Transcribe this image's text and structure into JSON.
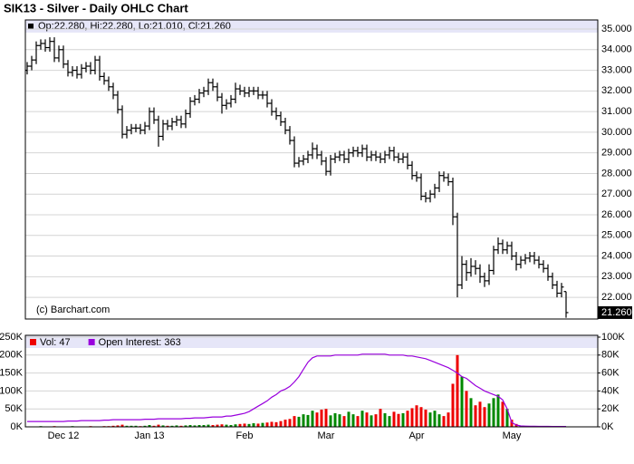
{
  "chart_data": [
    {
      "type": "ohlc",
      "title": "SIK13 - Silver - Daily OHLC Chart",
      "info": "Op:22.280, Hi:22.280, Lo:21.010, Cl:21.260",
      "copyright": "(c) Barchart.com",
      "color": "#000000",
      "last_price": {
        "value": 21.26,
        "label": "21.260"
      },
      "ylim": [
        20.95,
        35.44
      ],
      "yticks": [
        {
          "value": 22,
          "label": "22.000"
        },
        {
          "value": 23,
          "label": "23.000"
        },
        {
          "value": 24,
          "label": "24.000"
        },
        {
          "value": 25,
          "label": "25.000"
        },
        {
          "value": 26,
          "label": "26.000"
        },
        {
          "value": 27,
          "label": "27.000"
        },
        {
          "value": 28,
          "label": "28.000"
        },
        {
          "value": 29,
          "label": "29.000"
        },
        {
          "value": 30,
          "label": "30.000"
        },
        {
          "value": 31,
          "label": "31.000"
        },
        {
          "value": 32,
          "label": "32.000"
        },
        {
          "value": 33,
          "label": "33.000"
        },
        {
          "value": 34,
          "label": "34.000"
        },
        {
          "value": 35,
          "label": "35.000"
        }
      ],
      "grid": true,
      "open": [
        33.0,
        33.2,
        33.5,
        34.2,
        34.3,
        34.1,
        34.4,
        33.6,
        34.0,
        33.3,
        32.9,
        33.0,
        32.8,
        33.1,
        33.2,
        33.0,
        33.5,
        32.7,
        32.5,
        32.2,
        31.8,
        31.1,
        29.9,
        30.1,
        30.2,
        30.2,
        30.1,
        30.3,
        31.0,
        30.6,
        29.8,
        30.4,
        30.3,
        30.5,
        30.6,
        30.4,
        30.9,
        31.5,
        31.6,
        31.9,
        32.0,
        32.4,
        32.2,
        31.7,
        31.3,
        31.4,
        31.6,
        32.1,
        32.0,
        31.9,
        32.0,
        32.0,
        31.8,
        31.8,
        31.4,
        31.0,
        30.8,
        30.5,
        30.1,
        29.6,
        28.5,
        28.6,
        28.7,
        28.9,
        29.2,
        28.9,
        28.6,
        28.1,
        28.7,
        28.8,
        28.9,
        28.7,
        29.0,
        29.1,
        29.0,
        29.2,
        28.8,
        28.9,
        28.8,
        28.7,
        28.9,
        29.1,
        28.8,
        28.7,
        28.8,
        28.4,
        27.9,
        27.8,
        26.9,
        26.8,
        27.0,
        27.3,
        27.9,
        27.8,
        27.6,
        25.9,
        22.6,
        23.6,
        23.2,
        23.5,
        23.4,
        23.0,
        22.8,
        23.3,
        24.3,
        24.6,
        24.3,
        24.5,
        24.0,
        23.6,
        23.8,
        23.9,
        24.0,
        23.8,
        23.6,
        23.4,
        23.0,
        22.6,
        22.2,
        22.28
      ],
      "high": [
        33.4,
        33.7,
        34.4,
        34.5,
        34.5,
        34.6,
        34.6,
        34.2,
        34.2,
        33.5,
        33.2,
        33.2,
        33.3,
        33.4,
        33.4,
        33.7,
        33.7,
        32.9,
        32.7,
        32.4,
        32.0,
        31.3,
        30.3,
        30.4,
        30.4,
        30.4,
        30.5,
        31.2,
        31.2,
        30.8,
        30.6,
        30.6,
        30.7,
        30.8,
        30.8,
        31.1,
        31.7,
        31.8,
        32.1,
        32.2,
        32.6,
        32.6,
        32.4,
        31.9,
        31.6,
        31.8,
        32.4,
        32.3,
        32.2,
        32.2,
        32.2,
        32.2,
        32.0,
        32.0,
        31.6,
        31.2,
        31.0,
        30.7,
        30.3,
        29.8,
        28.8,
        28.9,
        29.1,
        29.5,
        29.4,
        29.1,
        28.8,
        28.9,
        29.0,
        29.1,
        29.1,
        29.2,
        29.3,
        29.3,
        29.4,
        29.4,
        29.1,
        29.1,
        29.0,
        29.1,
        29.3,
        29.3,
        29.0,
        29.0,
        29.0,
        28.6,
        28.1,
        28.0,
        27.1,
        27.2,
        27.5,
        28.1,
        28.1,
        28.0,
        27.8,
        26.1,
        24.0,
        23.8,
        23.9,
        23.8,
        23.6,
        23.2,
        23.6,
        24.5,
        24.9,
        24.8,
        24.7,
        24.7,
        24.2,
        24.0,
        24.1,
        24.2,
        24.2,
        24.0,
        23.8,
        23.6,
        23.2,
        22.8,
        22.7,
        22.28
      ],
      "low": [
        32.8,
        33.0,
        33.3,
        34.0,
        33.9,
        33.9,
        33.4,
        33.4,
        33.1,
        32.7,
        32.7,
        32.6,
        32.6,
        32.9,
        32.8,
        32.8,
        32.5,
        32.3,
        32.0,
        31.6,
        30.9,
        29.7,
        29.7,
        29.9,
        30.0,
        29.9,
        29.9,
        30.1,
        30.4,
        29.3,
        29.6,
        30.1,
        30.1,
        30.3,
        30.2,
        30.2,
        30.7,
        31.3,
        31.4,
        31.7,
        31.8,
        32.0,
        31.5,
        30.9,
        31.1,
        31.2,
        31.4,
        31.8,
        31.7,
        31.7,
        31.8,
        31.6,
        31.6,
        31.2,
        30.8,
        30.6,
        30.3,
        29.9,
        29.4,
        28.3,
        28.3,
        28.4,
        28.5,
        28.7,
        28.7,
        28.4,
        27.9,
        27.9,
        28.5,
        28.6,
        28.5,
        28.5,
        28.8,
        28.8,
        28.8,
        28.6,
        28.6,
        28.6,
        28.5,
        28.5,
        28.7,
        28.6,
        28.5,
        28.5,
        28.2,
        27.7,
        27.6,
        26.7,
        26.6,
        26.6,
        26.8,
        27.1,
        27.6,
        27.4,
        25.5,
        22.0,
        22.4,
        22.8,
        23.0,
        23.1,
        22.7,
        22.5,
        22.6,
        23.1,
        24.1,
        24.1,
        24.1,
        23.8,
        23.3,
        23.4,
        23.6,
        23.7,
        23.6,
        23.4,
        23.2,
        22.8,
        22.4,
        22.0,
        22.0,
        21.01
      ],
      "close": [
        33.2,
        33.5,
        34.2,
        34.3,
        34.1,
        34.4,
        33.6,
        34.0,
        33.3,
        32.9,
        33.0,
        32.8,
        33.1,
        33.2,
        33.0,
        33.5,
        32.7,
        32.5,
        32.2,
        31.8,
        31.1,
        29.9,
        30.1,
        30.2,
        30.2,
        30.1,
        30.3,
        31.0,
        30.6,
        29.8,
        30.4,
        30.3,
        30.5,
        30.6,
        30.4,
        30.9,
        31.5,
        31.6,
        31.9,
        32.0,
        32.4,
        32.2,
        31.7,
        31.3,
        31.4,
        31.6,
        32.1,
        32.0,
        31.9,
        32.0,
        32.0,
        31.8,
        31.8,
        31.4,
        31.0,
        30.8,
        30.5,
        30.1,
        29.6,
        28.5,
        28.6,
        28.7,
        28.9,
        29.2,
        28.9,
        28.6,
        28.1,
        28.7,
        28.8,
        28.9,
        28.7,
        29.0,
        29.1,
        29.0,
        29.2,
        28.8,
        28.9,
        28.8,
        28.7,
        28.9,
        29.1,
        28.8,
        28.7,
        28.8,
        28.4,
        27.9,
        27.8,
        26.9,
        26.8,
        27.0,
        27.3,
        27.9,
        27.8,
        27.6,
        25.9,
        22.6,
        23.6,
        23.2,
        23.5,
        23.4,
        23.0,
        22.8,
        23.3,
        24.3,
        24.6,
        24.3,
        24.5,
        24.0,
        23.6,
        23.8,
        23.9,
        24.0,
        23.8,
        23.6,
        23.4,
        23.0,
        22.6,
        22.2,
        22.5,
        21.26
      ]
    },
    {
      "type": "bar",
      "categories": [
        null,
        null,
        null,
        null,
        null,
        null,
        null,
        null,
        "Dec 12",
        null,
        null,
        null,
        null,
        null,
        null,
        null,
        null,
        null,
        null,
        null,
        null,
        null,
        null,
        null,
        null,
        null,
        null,
        "Jan 13",
        null,
        null,
        null,
        null,
        null,
        null,
        null,
        null,
        null,
        null,
        null,
        null,
        null,
        null,
        null,
        null,
        null,
        null,
        null,
        null,
        "Feb",
        null,
        null,
        null,
        null,
        null,
        null,
        null,
        null,
        null,
        null,
        null,
        null,
        null,
        null,
        null,
        null,
        null,
        "Mar",
        null,
        null,
        null,
        null,
        null,
        null,
        null,
        null,
        null,
        null,
        null,
        null,
        null,
        null,
        null,
        null,
        null,
        null,
        null,
        "Apr",
        null,
        null,
        null,
        null,
        null,
        null,
        null,
        null,
        null,
        null,
        null,
        null,
        null,
        null,
        null,
        null,
        null,
        null,
        null,
        null,
        "May",
        null,
        null,
        null,
        null,
        null,
        null,
        null,
        null,
        null,
        null,
        null,
        null
      ],
      "ylim": [
        0,
        250000
      ],
      "yticks": [
        {
          "value": 0,
          "label": "0K"
        },
        {
          "value": 50000,
          "label": "50K"
        },
        {
          "value": 100000,
          "label": "100K"
        },
        {
          "value": 150000,
          "label": "150K"
        },
        {
          "value": 200000,
          "label": "200K"
        },
        {
          "value": 250000,
          "label": "250K"
        }
      ],
      "y2lim": [
        0,
        100000
      ],
      "y2ticks": [
        {
          "value": 0,
          "label": "0K"
        },
        {
          "value": 20000,
          "label": "20K"
        },
        {
          "value": 40000,
          "label": "40K"
        },
        {
          "value": 60000,
          "label": "60K"
        },
        {
          "value": 80000,
          "label": "80K"
        },
        {
          "value": 100000,
          "label": "100K"
        }
      ],
      "grid": true,
      "series": [
        {
          "name": "Vol: 47",
          "color": "#ee0000",
          "up_color": "#008800",
          "values": [
            1000,
            1000,
            1000,
            2000,
            1000,
            1000,
            2000,
            1000,
            1000,
            1000,
            2000,
            1000,
            1000,
            1000,
            2000,
            1000,
            1000,
            2000,
            2000,
            3000,
            4000,
            6000,
            3000,
            3000,
            3000,
            2000,
            3000,
            5000,
            3000,
            6000,
            4000,
            3000,
            3000,
            4000,
            3000,
            4000,
            5000,
            4000,
            5000,
            5000,
            6000,
            5000,
            6000,
            7000,
            6000,
            5000,
            7000,
            8000,
            9000,
            8000,
            10000,
            9000,
            11000,
            12000,
            14000,
            13000,
            16000,
            20000,
            22000,
            30000,
            28000,
            35000,
            33000,
            45000,
            40000,
            48000,
            50000,
            32000,
            38000,
            35000,
            30000,
            42000,
            35000,
            30000,
            45000,
            40000,
            32000,
            35000,
            50000,
            38000,
            30000,
            42000,
            36000,
            38000,
            45000,
            52000,
            60000,
            55000,
            48000,
            40000,
            45000,
            35000,
            30000,
            40000,
            120000,
            200000,
            140000,
            100000,
            80000,
            60000,
            70000,
            55000,
            65000,
            80000,
            90000,
            70000,
            50000,
            20000,
            8000,
            3000,
            2000,
            2000,
            1000,
            1000,
            1000,
            1000,
            1000,
            500,
            300,
            47
          ]
        },
        {
          "name": "Open Interest: 363",
          "color": "#9900dd",
          "axis": "y2",
          "values": [
            6000,
            6000,
            6000,
            6000,
            6000,
            6000,
            6000,
            6000,
            6000,
            6500,
            6500,
            6500,
            7000,
            7000,
            7000,
            7000,
            7000,
            7500,
            7500,
            8000,
            8000,
            8000,
            8000,
            8000,
            8000,
            8000,
            8500,
            8500,
            8500,
            9000,
            9000,
            9000,
            9000,
            9000,
            9000,
            9500,
            9500,
            10000,
            10000,
            10000,
            10500,
            11000,
            11000,
            11000,
            12000,
            12000,
            13000,
            14000,
            15000,
            17000,
            20000,
            23000,
            26000,
            29000,
            33000,
            36000,
            40000,
            42000,
            45000,
            50000,
            56000,
            64000,
            72000,
            77000,
            79000,
            79000,
            79000,
            79000,
            80000,
            80000,
            80000,
            80000,
            80000,
            80000,
            81000,
            81000,
            81000,
            81000,
            81000,
            81000,
            80000,
            80000,
            80000,
            80000,
            79000,
            79000,
            78000,
            77000,
            76000,
            74000,
            72000,
            70000,
            68000,
            66000,
            63000,
            60000,
            56000,
            54000,
            50000,
            46000,
            43000,
            40000,
            38000,
            36000,
            34000,
            30000,
            20000,
            5000,
            2000,
            1000,
            800,
            700,
            600,
            500,
            500,
            500,
            400,
            400,
            400,
            363
          ]
        }
      ]
    }
  ]
}
